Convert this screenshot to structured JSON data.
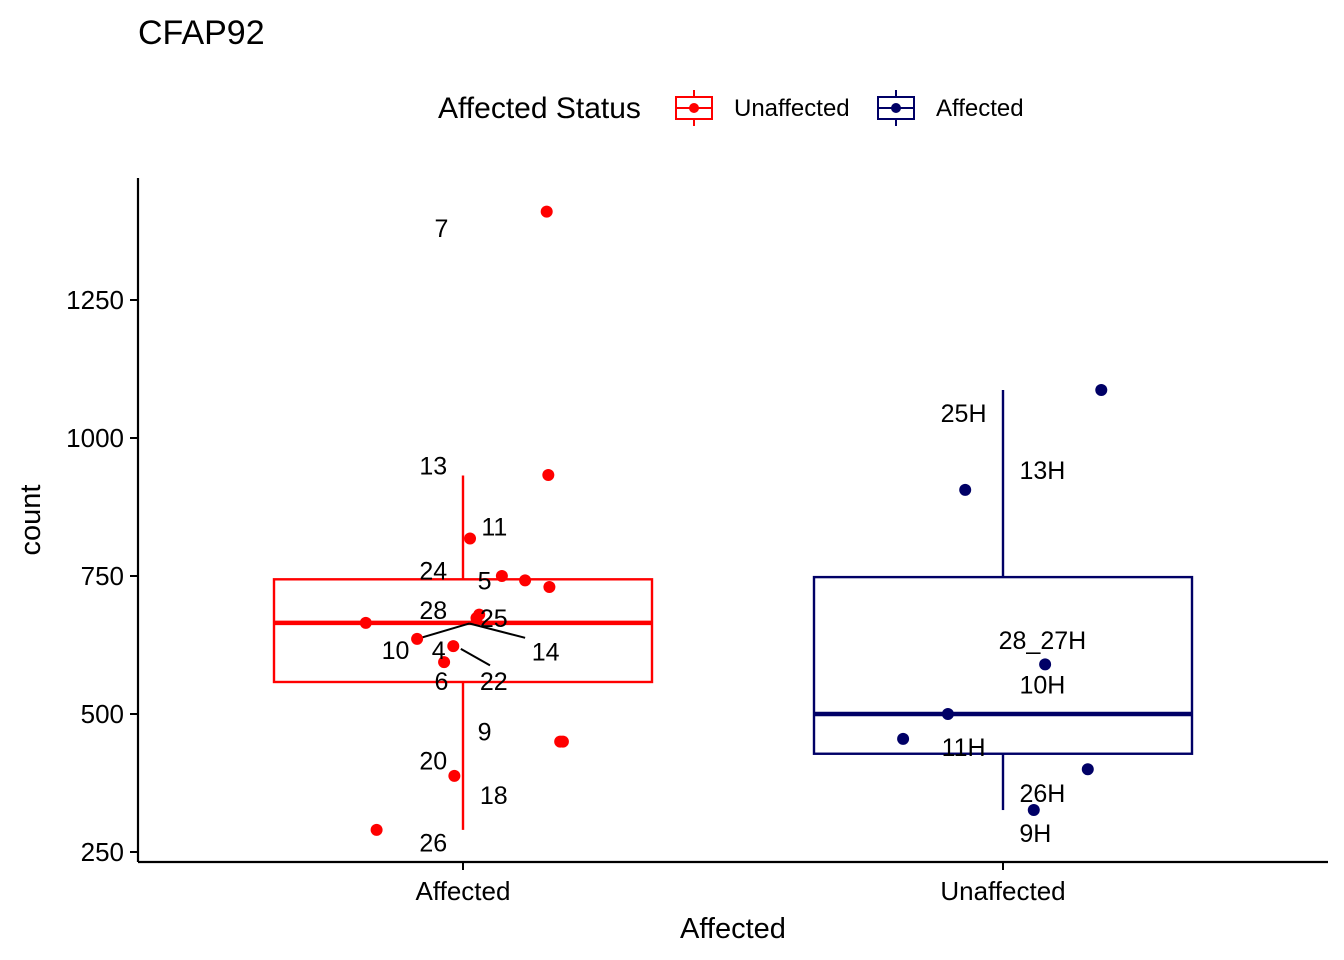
{
  "chart_data": {
    "type": "box",
    "title": "CFAP92",
    "xlabel": "Affected",
    "ylabel": "count",
    "ylim": [
      240,
      1455
    ],
    "y_ticks": [
      250,
      500,
      750,
      1000,
      1250
    ],
    "categories": [
      "Affected",
      "Unaffected"
    ],
    "legend": {
      "title": "Affected Status",
      "position": "top",
      "items": [
        {
          "label": "Unaffected",
          "color": "#ff0000"
        },
        {
          "label": "Affected",
          "color": "#000066"
        }
      ]
    },
    "boxes": [
      {
        "category": "Affected",
        "color": "#ff0000",
        "min": 290,
        "q1": 558,
        "median": 665,
        "q3": 744,
        "max": 932
      },
      {
        "category": "Unaffected",
        "color": "#000066",
        "min": 326,
        "q1": 428,
        "median": 500,
        "q3": 748,
        "max": 1087
      }
    ],
    "points": [
      {
        "group": "Affected",
        "label": "7",
        "x": 0.155,
        "y": 1410
      },
      {
        "group": "Affected",
        "label": "13",
        "x": 0.158,
        "y": 933
      },
      {
        "group": "Affected",
        "label": "11",
        "x": 0.013,
        "y": 818
      },
      {
        "group": "Affected",
        "label": "24",
        "x": 0.072,
        "y": 750
      },
      {
        "group": "Affected",
        "label": "5",
        "x": 0.115,
        "y": 742
      },
      {
        "group": "Affected",
        "label": "28",
        "x": 0.16,
        "y": 730
      },
      {
        "group": "Affected",
        "label": "25",
        "x": 0.03,
        "y": 680
      },
      {
        "group": "Affected",
        "label": "14",
        "x": 0.025,
        "y": 674
      },
      {
        "group": "Affected",
        "label": "10",
        "x": -0.18,
        "y": 665
      },
      {
        "group": "Affected",
        "label": "4",
        "x": -0.085,
        "y": 636
      },
      {
        "group": "Affected",
        "label": "22",
        "x": -0.018,
        "y": 623
      },
      {
        "group": "Affected",
        "label": "6",
        "x": -0.035,
        "y": 594
      },
      {
        "group": "Affected",
        "label": "9",
        "x": 0.18,
        "y": 450
      },
      {
        "group": "Affected",
        "label": "20",
        "x": 0.185,
        "y": 450
      },
      {
        "group": "Affected",
        "label": "18",
        "x": -0.016,
        "y": 388
      },
      {
        "group": "Affected",
        "label": "26",
        "x": -0.16,
        "y": 290
      },
      {
        "group": "Unaffected",
        "label": "25H",
        "x": 0.182,
        "y": 1087
      },
      {
        "group": "Unaffected",
        "label": "13H",
        "x": -0.07,
        "y": 906
      },
      {
        "group": "Unaffected",
        "label": "28_27H",
        "x": 0.078,
        "y": 590
      },
      {
        "group": "Unaffected",
        "label": "10H",
        "x": -0.102,
        "y": 500
      },
      {
        "group": "Unaffected",
        "label": "11H",
        "x": -0.185,
        "y": 455
      },
      {
        "group": "Unaffected",
        "label": "26H",
        "x": 0.157,
        "y": 400
      },
      {
        "group": "Unaffected",
        "label": "9H",
        "x": 0.057,
        "y": 326
      }
    ],
    "text_labels": [
      {
        "text": "7",
        "x": -0.04,
        "y": 1380
      },
      {
        "text": "13",
        "x": -0.055,
        "y": 950
      },
      {
        "text": "11",
        "x": 0.058,
        "y": 840
      },
      {
        "text": "24",
        "x": -0.055,
        "y": 760
      },
      {
        "text": "5",
        "x": 0.04,
        "y": 742
      },
      {
        "text": "28",
        "x": -0.055,
        "y": 688
      },
      {
        "text": "25",
        "x": 0.057,
        "y": 674
      },
      {
        "text": "10",
        "x": -0.125,
        "y": 616
      },
      {
        "text": "4",
        "x": -0.045,
        "y": 616
      },
      {
        "text": "14",
        "x": 0.153,
        "y": 613
      },
      {
        "text": "6",
        "x": -0.04,
        "y": 560
      },
      {
        "text": "22",
        "x": 0.057,
        "y": 560
      },
      {
        "text": "9",
        "x": 0.04,
        "y": 468
      },
      {
        "text": "20",
        "x": -0.055,
        "y": 416
      },
      {
        "text": "18",
        "x": 0.057,
        "y": 353
      },
      {
        "text": "26",
        "x": -0.055,
        "y": 267
      },
      {
        "text": "25H",
        "x": -0.073,
        "y": 1045
      },
      {
        "text": "13H",
        "x": 0.073,
        "y": 942
      },
      {
        "text": "28_27H",
        "x": 0.073,
        "y": 634
      },
      {
        "text": "10H",
        "x": 0.073,
        "y": 553
      },
      {
        "text": "11H",
        "x": -0.073,
        "y": 440
      },
      {
        "text": "26H",
        "x": 0.073,
        "y": 357
      },
      {
        "text": "9H",
        "x": 0.06,
        "y": 284
      }
    ],
    "connectors": [
      {
        "from": [
          -0.085,
          636
        ],
        "to": [
          0.012,
          664
        ]
      },
      {
        "from": [
          0.012,
          664
        ],
        "to": [
          0.115,
          638
        ]
      },
      {
        "from": [
          -0.004,
          618
        ],
        "to": [
          0.05,
          588
        ]
      }
    ]
  }
}
